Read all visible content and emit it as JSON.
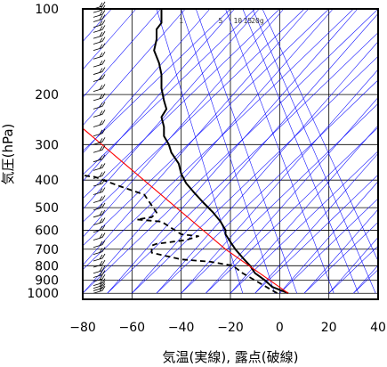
{
  "chart_data": {
    "type": "line",
    "title": "",
    "xlabel": "気温(実線), 露点(破線)",
    "ylabel": "気圧(hPa)",
    "xlim": [
      -80,
      40
    ],
    "ylim": [
      1000,
      100
    ],
    "y_scale": "log",
    "grid": true,
    "x_ticks": [
      -80,
      -60,
      -40,
      -20,
      0,
      20,
      40
    ],
    "x_tick_labels": [
      "−80",
      "−60",
      "−40",
      "−20",
      "0",
      "20",
      "40"
    ],
    "y_ticks": [
      100,
      200,
      300,
      400,
      500,
      600,
      700,
      800,
      900,
      1000
    ],
    "y_tick_labels": [
      "100",
      "200",
      "300",
      "400",
      "500",
      "600",
      "700",
      "800",
      "900",
      "1000"
    ],
    "mixing_ratio_labels": [
      "1",
      "5",
      "10",
      "15",
      "20g"
    ],
    "colors": {
      "temperature": "#000000",
      "dewpoint": "#000000",
      "parcel": "#ff0000",
      "adiabats": "#0000ff",
      "grid": "#000000"
    },
    "series": [
      {
        "name": "気温",
        "style": "solid",
        "points": [
          [
            3.5,
            1000
          ],
          [
            -3,
            950
          ],
          [
            -6,
            900
          ],
          [
            -10,
            850
          ],
          [
            -12,
            800
          ],
          [
            -15,
            750
          ],
          [
            -18,
            700
          ],
          [
            -20,
            660
          ],
          [
            -22,
            620
          ],
          [
            -22,
            600
          ],
          [
            -24,
            560
          ],
          [
            -27,
            520
          ],
          [
            -31,
            480
          ],
          [
            -35,
            440
          ],
          [
            -38,
            410
          ],
          [
            -40,
            380
          ],
          [
            -41,
            350
          ],
          [
            -44,
            320
          ],
          [
            -45,
            300
          ],
          [
            -47,
            280
          ],
          [
            -47,
            260
          ],
          [
            -48,
            240
          ],
          [
            -46,
            225
          ],
          [
            -47,
            210
          ],
          [
            -48,
            190
          ],
          [
            -48,
            170
          ],
          [
            -49,
            155
          ],
          [
            -51,
            140
          ],
          [
            -50,
            128
          ],
          [
            -50,
            118
          ],
          [
            -48,
            112
          ],
          [
            -48,
            105
          ],
          [
            -48,
            100
          ]
        ]
      },
      {
        "name": "露点",
        "style": "dashed",
        "points": [
          [
            -1,
            1000
          ],
          [
            -12,
            880
          ],
          [
            -15,
            850
          ],
          [
            -19,
            800
          ],
          [
            -28,
            775
          ],
          [
            -40,
            760
          ],
          [
            -52,
            720
          ],
          [
            -52,
            680
          ],
          [
            -50,
            670
          ],
          [
            -38,
            650
          ],
          [
            -33,
            630
          ],
          [
            -40,
            620
          ],
          [
            -48,
            560
          ],
          [
            -58,
            550
          ],
          [
            -52,
            540
          ],
          [
            -50,
            520
          ],
          [
            -55,
            450
          ],
          [
            -65,
            420
          ],
          [
            -75,
            390
          ],
          [
            -80,
            385
          ]
        ]
      },
      {
        "name": "",
        "style": "parcel",
        "points": [
          [
            3.5,
            1000
          ],
          [
            -22,
            700
          ],
          [
            -80,
            263
          ]
        ]
      }
    ]
  }
}
